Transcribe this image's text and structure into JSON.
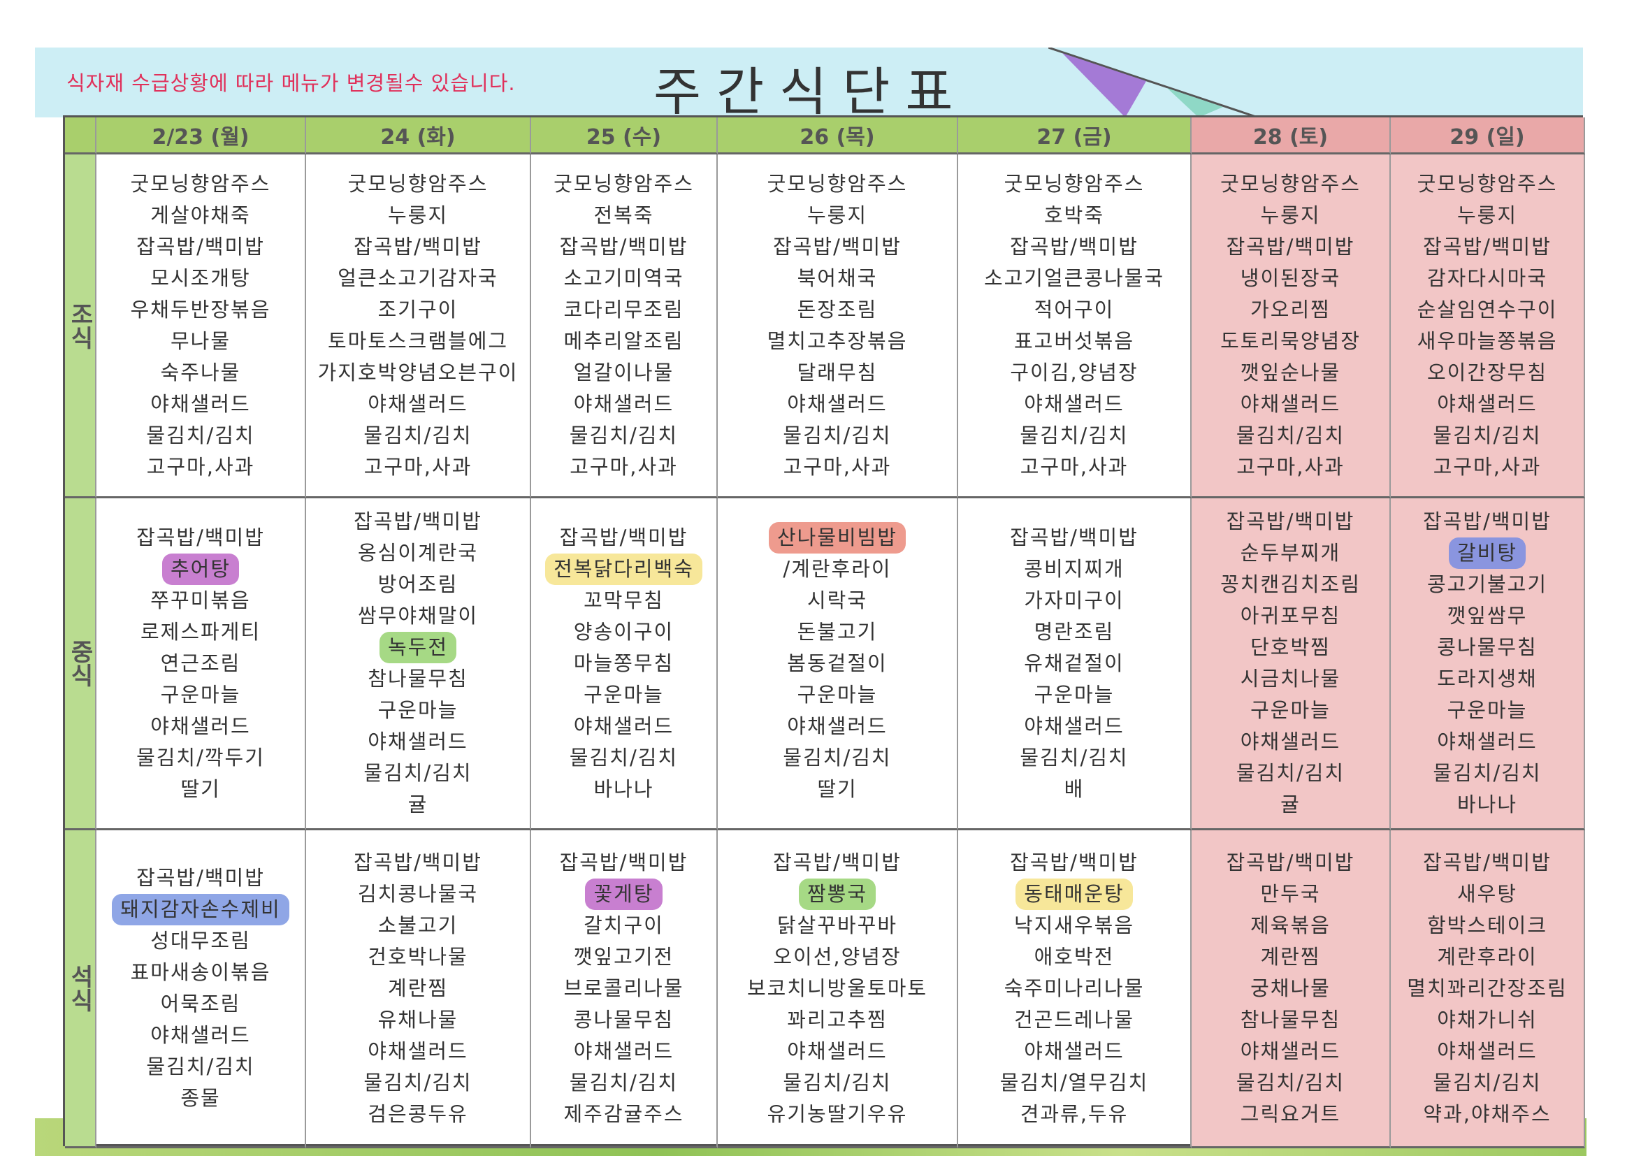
{
  "header": {
    "notice": "식자재 수급상황에 따라 메뉴가 변경될수 있습니다.",
    "title": "주간식단표"
  },
  "colors": {
    "header_weekday": "#a9cf6c",
    "header_weekend": "#e9a8a8",
    "weekend_cell": "#f2c6c6",
    "notice_text": "#e0305a"
  },
  "row_labels": [
    "조식",
    "중식",
    "석식"
  ],
  "days": [
    {
      "label": "2/23 (월)",
      "weekend": false,
      "breakfast": [
        {
          "t": "굿모닝향암주스"
        },
        {
          "t": "게살야채죽"
        },
        {
          "t": "잡곡밥/백미밥"
        },
        {
          "t": "모시조개탕"
        },
        {
          "t": "우채두반장볶음"
        },
        {
          "t": "무나물"
        },
        {
          "t": "숙주나물"
        },
        {
          "t": "야채샐러드"
        },
        {
          "t": "물김치/김치"
        },
        {
          "t": "고구마,사과"
        }
      ],
      "lunch": [
        {
          "t": "잡곡밥/백미밥"
        },
        {
          "t": "추어탕",
          "hl": "purple"
        },
        {
          "t": "쭈꾸미볶음"
        },
        {
          "t": "로제스파게티"
        },
        {
          "t": "연근조림"
        },
        {
          "t": "구운마늘"
        },
        {
          "t": "야채샐러드"
        },
        {
          "t": "물김치/깍두기"
        },
        {
          "t": "딸기"
        }
      ],
      "dinner": [
        {
          "t": "잡곡밥/백미밥"
        },
        {
          "t": "돼지감자손수제비",
          "hl": "lightblue"
        },
        {
          "t": "성대무조림"
        },
        {
          "t": "표마새송이볶음"
        },
        {
          "t": "어묵조림"
        },
        {
          "t": "야채샐러드"
        },
        {
          "t": "물김치/김치"
        },
        {
          "t": "종물"
        }
      ]
    },
    {
      "label": "24 (화)",
      "weekend": false,
      "breakfast": [
        {
          "t": "굿모닝향암주스"
        },
        {
          "t": "누룽지"
        },
        {
          "t": "잡곡밥/백미밥"
        },
        {
          "t": "얼큰소고기감자국"
        },
        {
          "t": "조기구이"
        },
        {
          "t": "토마토스크램블에그"
        },
        {
          "t": "가지호박양념오븐구이"
        },
        {
          "t": "야채샐러드"
        },
        {
          "t": "물김치/김치"
        },
        {
          "t": "고구마,사과"
        }
      ],
      "lunch": [
        {
          "t": "잡곡밥/백미밥"
        },
        {
          "t": "옹심이계란국"
        },
        {
          "t": "방어조림"
        },
        {
          "t": "쌈무야채말이"
        },
        {
          "t": "녹두전",
          "hl": "green"
        },
        {
          "t": "참나물무침"
        },
        {
          "t": "구운마늘"
        },
        {
          "t": "야채샐러드"
        },
        {
          "t": "물김치/김치"
        },
        {
          "t": "귤"
        }
      ],
      "dinner": [
        {
          "t": "잡곡밥/백미밥"
        },
        {
          "t": "김치콩나물국"
        },
        {
          "t": "소불고기"
        },
        {
          "t": "건호박나물"
        },
        {
          "t": "계란찜"
        },
        {
          "t": "유채나물"
        },
        {
          "t": "야채샐러드"
        },
        {
          "t": "물김치/김치"
        },
        {
          "t": "검은콩두유"
        }
      ]
    },
    {
      "label": "25 (수)",
      "weekend": false,
      "breakfast": [
        {
          "t": "굿모닝향암주스"
        },
        {
          "t": "전복죽"
        },
        {
          "t": "잡곡밥/백미밥"
        },
        {
          "t": "소고기미역국"
        },
        {
          "t": "코다리무조림"
        },
        {
          "t": "메추리알조림"
        },
        {
          "t": "얼갈이나물"
        },
        {
          "t": "야채샐러드"
        },
        {
          "t": "물김치/김치"
        },
        {
          "t": "고구마,사과"
        }
      ],
      "lunch": [
        {
          "t": "잡곡밥/백미밥"
        },
        {
          "t": "전복닭다리백숙",
          "hl": "yellow"
        },
        {
          "t": "꼬막무침"
        },
        {
          "t": "양송이구이"
        },
        {
          "t": "마늘쫑무침"
        },
        {
          "t": "구운마늘"
        },
        {
          "t": "야채샐러드"
        },
        {
          "t": "물김치/김치"
        },
        {
          "t": "바나나"
        }
      ],
      "dinner": [
        {
          "t": "잡곡밥/백미밥"
        },
        {
          "t": "꽃게탕",
          "hl": "purple"
        },
        {
          "t": "갈치구이"
        },
        {
          "t": "깻잎고기전"
        },
        {
          "t": "브로콜리나물"
        },
        {
          "t": "콩나물무침"
        },
        {
          "t": "야채샐러드"
        },
        {
          "t": "물김치/김치"
        },
        {
          "t": "제주감귤주스"
        }
      ]
    },
    {
      "label": "26 (목)",
      "weekend": false,
      "breakfast": [
        {
          "t": "굿모닝향암주스"
        },
        {
          "t": "누룽지"
        },
        {
          "t": "잡곡밥/백미밥"
        },
        {
          "t": "북어채국"
        },
        {
          "t": "돈장조림"
        },
        {
          "t": "멸치고추장볶음"
        },
        {
          "t": "달래무침"
        },
        {
          "t": "야채샐러드"
        },
        {
          "t": "물김치/김치"
        },
        {
          "t": "고구마,사과"
        }
      ],
      "lunch": [
        {
          "t": "산나물비빔밥",
          "hl": "red"
        },
        {
          "t": "/계란후라이"
        },
        {
          "t": "시락국"
        },
        {
          "t": "돈불고기"
        },
        {
          "t": "봄동겉절이"
        },
        {
          "t": "구운마늘"
        },
        {
          "t": "야채샐러드"
        },
        {
          "t": "물김치/김치"
        },
        {
          "t": "딸기"
        }
      ],
      "dinner": [
        {
          "t": "잡곡밥/백미밥"
        },
        {
          "t": "짬뽕국",
          "hl": "green"
        },
        {
          "t": "닭살꾸바꾸바"
        },
        {
          "t": "오이선,양념장"
        },
        {
          "t": "보코치니방울토마토"
        },
        {
          "t": "꽈리고추찜"
        },
        {
          "t": "야채샐러드"
        },
        {
          "t": "물김치/김치"
        },
        {
          "t": "유기농딸기우유"
        }
      ]
    },
    {
      "label": "27 (금)",
      "weekend": false,
      "breakfast": [
        {
          "t": "굿모닝향암주스"
        },
        {
          "t": "호박죽"
        },
        {
          "t": "잡곡밥/백미밥"
        },
        {
          "t": "소고기얼큰콩나물국"
        },
        {
          "t": "적어구이"
        },
        {
          "t": "표고버섯볶음"
        },
        {
          "t": "구이김,양념장"
        },
        {
          "t": "야채샐러드"
        },
        {
          "t": "물김치/김치"
        },
        {
          "t": "고구마,사과"
        }
      ],
      "lunch": [
        {
          "t": "잡곡밥/백미밥"
        },
        {
          "t": "콩비지찌개"
        },
        {
          "t": "가자미구이"
        },
        {
          "t": "명란조림"
        },
        {
          "t": "유채겉절이"
        },
        {
          "t": "구운마늘"
        },
        {
          "t": "야채샐러드"
        },
        {
          "t": "물김치/김치"
        },
        {
          "t": "배"
        }
      ],
      "dinner": [
        {
          "t": "잡곡밥/백미밥"
        },
        {
          "t": "동태매운탕",
          "hl": "yellow"
        },
        {
          "t": "낙지새우볶음"
        },
        {
          "t": "애호박전"
        },
        {
          "t": "숙주미나리나물"
        },
        {
          "t": "건곤드레나물"
        },
        {
          "t": "야채샐러드"
        },
        {
          "t": "물김치/열무김치"
        },
        {
          "t": "견과류,두유"
        }
      ]
    },
    {
      "label": "28 (토)",
      "weekend": true,
      "breakfast": [
        {
          "t": "굿모닝향암주스"
        },
        {
          "t": "누룽지"
        },
        {
          "t": "잡곡밥/백미밥"
        },
        {
          "t": "냉이된장국"
        },
        {
          "t": "가오리찜"
        },
        {
          "t": "도토리묵양념장"
        },
        {
          "t": "깻잎순나물"
        },
        {
          "t": "야채샐러드"
        },
        {
          "t": "물김치/김치"
        },
        {
          "t": "고구마,사과"
        }
      ],
      "lunch": [
        {
          "t": "잡곡밥/백미밥"
        },
        {
          "t": "순두부찌개"
        },
        {
          "t": "꽁치캔김치조림"
        },
        {
          "t": "아귀포무침"
        },
        {
          "t": "단호박찜"
        },
        {
          "t": "시금치나물"
        },
        {
          "t": "구운마늘"
        },
        {
          "t": "야채샐러드"
        },
        {
          "t": "물김치/김치"
        },
        {
          "t": "귤"
        }
      ],
      "dinner": [
        {
          "t": "잡곡밥/백미밥"
        },
        {
          "t": "만두국"
        },
        {
          "t": "제육볶음"
        },
        {
          "t": "계란찜"
        },
        {
          "t": "궁채나물"
        },
        {
          "t": "참나물무침"
        },
        {
          "t": "야채샐러드"
        },
        {
          "t": "물김치/김치"
        },
        {
          "t": "그릭요거트"
        }
      ]
    },
    {
      "label": "29 (일)",
      "weekend": true,
      "breakfast": [
        {
          "t": "굿모닝향암주스"
        },
        {
          "t": "누룽지"
        },
        {
          "t": "잡곡밥/백미밥"
        },
        {
          "t": "감자다시마국"
        },
        {
          "t": "순살임연수구이"
        },
        {
          "t": "새우마늘쫑볶음"
        },
        {
          "t": "오이간장무침"
        },
        {
          "t": "야채샐러드"
        },
        {
          "t": "물김치/김치"
        },
        {
          "t": "고구마,사과"
        }
      ],
      "lunch": [
        {
          "t": "잡곡밥/백미밥"
        },
        {
          "t": "갈비탕",
          "hl": "blue"
        },
        {
          "t": "콩고기불고기"
        },
        {
          "t": "깻잎쌈무"
        },
        {
          "t": "콩나물무침"
        },
        {
          "t": "도라지생채"
        },
        {
          "t": "구운마늘"
        },
        {
          "t": "야채샐러드"
        },
        {
          "t": "물김치/김치"
        },
        {
          "t": "바나나"
        }
      ],
      "dinner": [
        {
          "t": "잡곡밥/백미밥"
        },
        {
          "t": "새우탕"
        },
        {
          "t": "함박스테이크"
        },
        {
          "t": "계란후라이"
        },
        {
          "t": "멸치꽈리간장조림"
        },
        {
          "t": "야채가니쉬"
        },
        {
          "t": "야채샐러드"
        },
        {
          "t": "물김치/김치"
        },
        {
          "t": "약과,야채주스"
        }
      ]
    }
  ]
}
